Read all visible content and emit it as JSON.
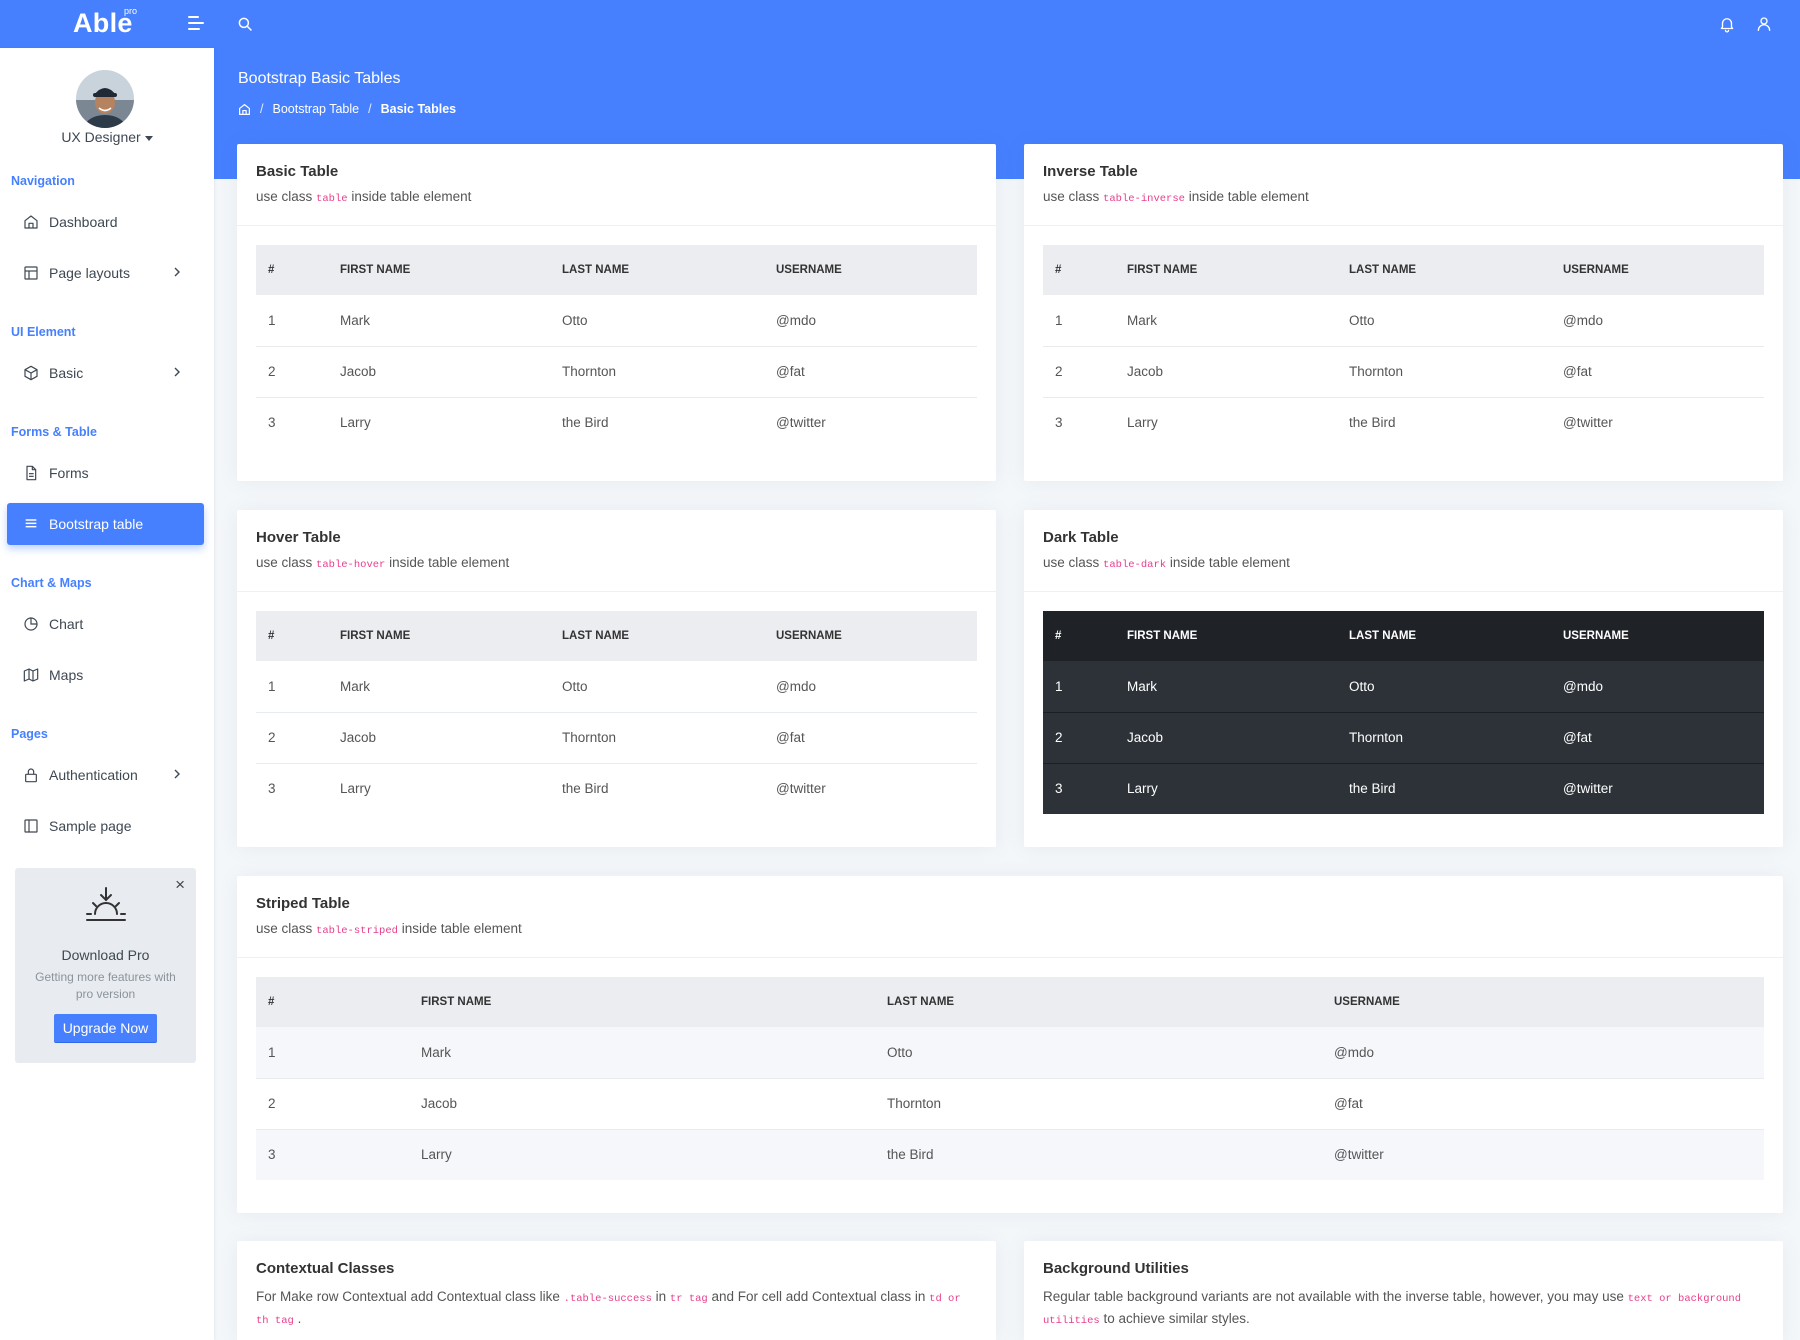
{
  "brand": {
    "name": "Able",
    "badge": "pro"
  },
  "header": {
    "title": "Bootstrap Basic Tables"
  },
  "breadcrumb": {
    "items": [
      "Bootstrap Table",
      "Basic Tables"
    ]
  },
  "sidebar": {
    "role": "UX Designer",
    "sections": [
      {
        "caption": "Navigation",
        "items": [
          "Dashboard",
          "Page layouts"
        ]
      },
      {
        "caption": "UI Element",
        "items": [
          "Basic"
        ]
      },
      {
        "caption": "Forms & Table",
        "items": [
          "Forms",
          "Bootstrap table"
        ]
      },
      {
        "caption": "Chart & Maps",
        "items": [
          "Chart",
          "Maps"
        ]
      },
      {
        "caption": "Pages",
        "items": [
          "Authentication",
          "Sample page"
        ]
      }
    ],
    "active_item": "Bootstrap table",
    "promo": {
      "title": "Download Pro",
      "text": "Getting more features with pro version",
      "button": "Upgrade Now",
      "close": "×"
    }
  },
  "columns": [
    "#",
    "FIRST NAME",
    "LAST NAME",
    "USERNAME"
  ],
  "rows": [
    [
      "1",
      "Mark",
      "Otto",
      "@mdo"
    ],
    [
      "2",
      "Jacob",
      "Thornton",
      "@fat"
    ],
    [
      "3",
      "Larry",
      "the Bird",
      "@twitter"
    ]
  ],
  "cards": {
    "basic": {
      "title": "Basic Table",
      "pre": "use class",
      "code": "table",
      "post": "inside table element"
    },
    "inverse": {
      "title": "Inverse Table",
      "pre": "use class",
      "code": "table-inverse",
      "post": "inside table element"
    },
    "hover": {
      "title": "Hover Table",
      "pre": "use class",
      "code": "table-hover",
      "post": "inside table element"
    },
    "dark": {
      "title": "Dark Table",
      "pre": "use class",
      "code": "table-dark",
      "post": "inside table element"
    },
    "striped": {
      "title": "Striped Table",
      "pre": "use class",
      "code": "table-striped",
      "post": "inside table element"
    },
    "contextual": {
      "title": "Contextual Classes",
      "t1": "For Make row Contextual add Contextual class like",
      "c1": ".table-success",
      "t2": "in",
      "c2": "tr tag",
      "t3": "and For cell add Contextual class in",
      "c3": "td or th tag",
      "t4": "."
    },
    "background": {
      "title": "Background Utilities",
      "t1": "Regular table background variants are not available with the inverse table, however, you may use",
      "c1": "text or background utilities",
      "t2": "to achieve similar styles."
    }
  },
  "colors": {
    "primary": "#4680ff",
    "code": "#e83e8c",
    "dark_table": "#2c3238"
  }
}
